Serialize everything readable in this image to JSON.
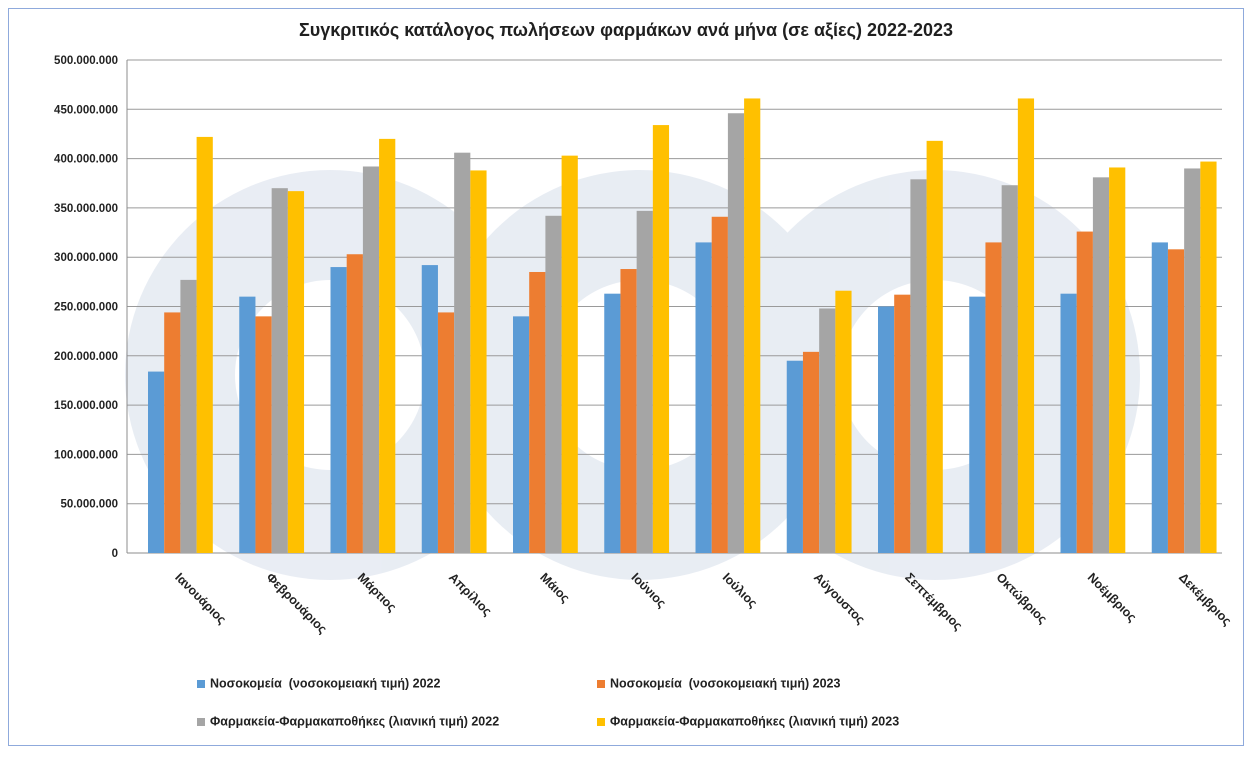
{
  "chart_data": {
    "type": "bar",
    "title": "Συγκριτικός κατάλογος πωλήσεων φαρμάκων ανά μήνα (σε αξίες) 2022-2023",
    "xlabel": "",
    "ylabel": "",
    "ylim": [
      0,
      500000000
    ],
    "yticks": [
      0,
      50000000,
      100000000,
      150000000,
      200000000,
      250000000,
      300000000,
      350000000,
      400000000,
      450000000,
      500000000
    ],
    "ytick_labels": [
      "0",
      "50.000.000",
      "100.000.000",
      "150.000.000",
      "200.000.000",
      "250.000.000",
      "300.000.000",
      "350.000.000",
      "400.000.000",
      "450.000.000",
      "500.000.000"
    ],
    "grid": true,
    "legend_position": "bottom",
    "categories": [
      "Ιανουάριος",
      "Φεβρουάριος",
      "Μάρτιος",
      "Απρίλιος",
      "Μάιος",
      "Ιούνιος",
      "Ιούλιος",
      "Αύγουστος",
      "Σεπτέμβριος",
      "Οκτώβριος",
      "Νοέμβριος",
      "Δεκέμβριος"
    ],
    "series": [
      {
        "name": "Νοσοκομεία  (νοσοκομειακή τιμή) 2022",
        "color": "#5b9bd5",
        "values": [
          184000000,
          260000000,
          290000000,
          292000000,
          240000000,
          263000000,
          315000000,
          195000000,
          250000000,
          260000000,
          263000000,
          315000000
        ]
      },
      {
        "name": "Νοσοκομεία  (νοσοκομειακή τιμή) 2023",
        "color": "#ed7d31",
        "values": [
          244000000,
          240000000,
          303000000,
          244000000,
          285000000,
          288000000,
          341000000,
          204000000,
          262000000,
          315000000,
          326000000,
          308000000
        ]
      },
      {
        "name": "Φαρμακεία-Φαρμακαποθήκες (λιανική τιμή) 2022",
        "color": "#a5a5a5",
        "values": [
          277000000,
          370000000,
          392000000,
          406000000,
          342000000,
          347000000,
          446000000,
          248000000,
          379000000,
          373000000,
          381000000,
          390000000
        ]
      },
      {
        "name": "Φαρμακεία-Φαρμακαποθήκες (λιανική τιμή) 2023",
        "color": "#ffc000",
        "values": [
          422000000,
          367000000,
          420000000,
          388000000,
          403000000,
          434000000,
          461000000,
          266000000,
          418000000,
          461000000,
          391000000,
          397000000
        ]
      }
    ]
  }
}
